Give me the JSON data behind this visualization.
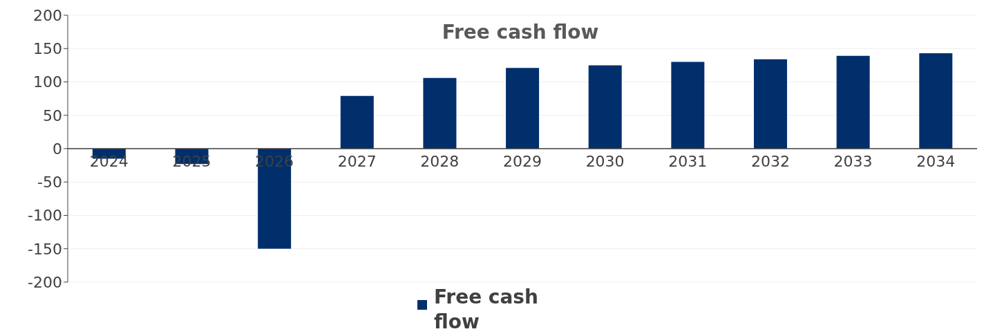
{
  "chart_data": {
    "type": "bar",
    "title": "Free cash flow",
    "categories": [
      "2024",
      "2025",
      "2026",
      "2027",
      "2028",
      "2029",
      "2030",
      "2031",
      "2032",
      "2033",
      "2034"
    ],
    "series": [
      {
        "name": "Free cash flow",
        "color": "#002f6c",
        "values": [
          -15,
          -23,
          -150,
          79,
          106,
          121,
          125,
          130,
          134,
          139,
          143
        ]
      }
    ],
    "ylim": [
      -200,
      200
    ],
    "yticks": [
      -200,
      -150,
      -100,
      -50,
      0,
      50,
      100,
      150,
      200
    ],
    "grid": "y",
    "legend": "bottom"
  }
}
